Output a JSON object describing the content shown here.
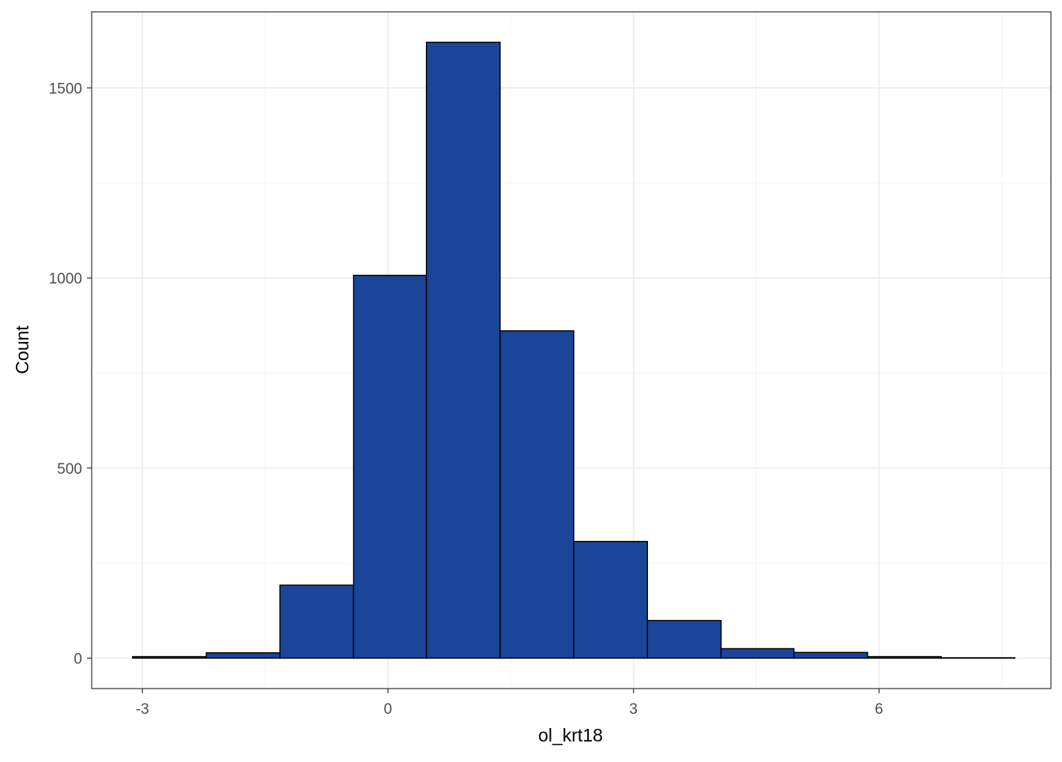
{
  "chart_data": {
    "type": "bar",
    "subtype": "histogram",
    "title": "",
    "xlabel": "ol_krt18",
    "ylabel": "Count",
    "xlim": [
      -3.62,
      8.1
    ],
    "ylim": [
      -80,
      1700
    ],
    "x_ticks": [
      -3,
      0,
      3,
      6
    ],
    "x_tick_labels": [
      "-3",
      "0",
      "3",
      "6"
    ],
    "y_ticks": [
      0,
      500,
      1000,
      1500
    ],
    "y_tick_labels": [
      "0",
      "500",
      "1000",
      "1500"
    ],
    "x_minor_ticks": [
      -1.5,
      1.5,
      4.5,
      7.5
    ],
    "y_minor_ticks": [
      250,
      750,
      1250
    ],
    "grid": true,
    "legend": "none",
    "bins": [
      {
        "x0": -3.12,
        "x1": -2.22,
        "count": 4
      },
      {
        "x0": -2.22,
        "x1": -1.32,
        "count": 14
      },
      {
        "x0": -1.32,
        "x1": -0.42,
        "count": 192
      },
      {
        "x0": -0.42,
        "x1": 0.47,
        "count": 1007
      },
      {
        "x0": 0.47,
        "x1": 1.37,
        "count": 1620
      },
      {
        "x0": 1.37,
        "x1": 2.27,
        "count": 861
      },
      {
        "x0": 2.27,
        "x1": 3.17,
        "count": 307
      },
      {
        "x0": 3.17,
        "x1": 4.07,
        "count": 99
      },
      {
        "x0": 4.07,
        "x1": 4.96,
        "count": 25
      },
      {
        "x0": 4.96,
        "x1": 5.86,
        "count": 15
      },
      {
        "x0": 5.86,
        "x1": 6.76,
        "count": 4
      },
      {
        "x0": 6.76,
        "x1": 7.66,
        "count": 1
      }
    ],
    "colors": {
      "fill": "#1a4599",
      "stroke": "#000000",
      "panel_border": "#333333",
      "grid_major": "#ebebeb",
      "grid_minor": "#f4f4f4"
    }
  }
}
